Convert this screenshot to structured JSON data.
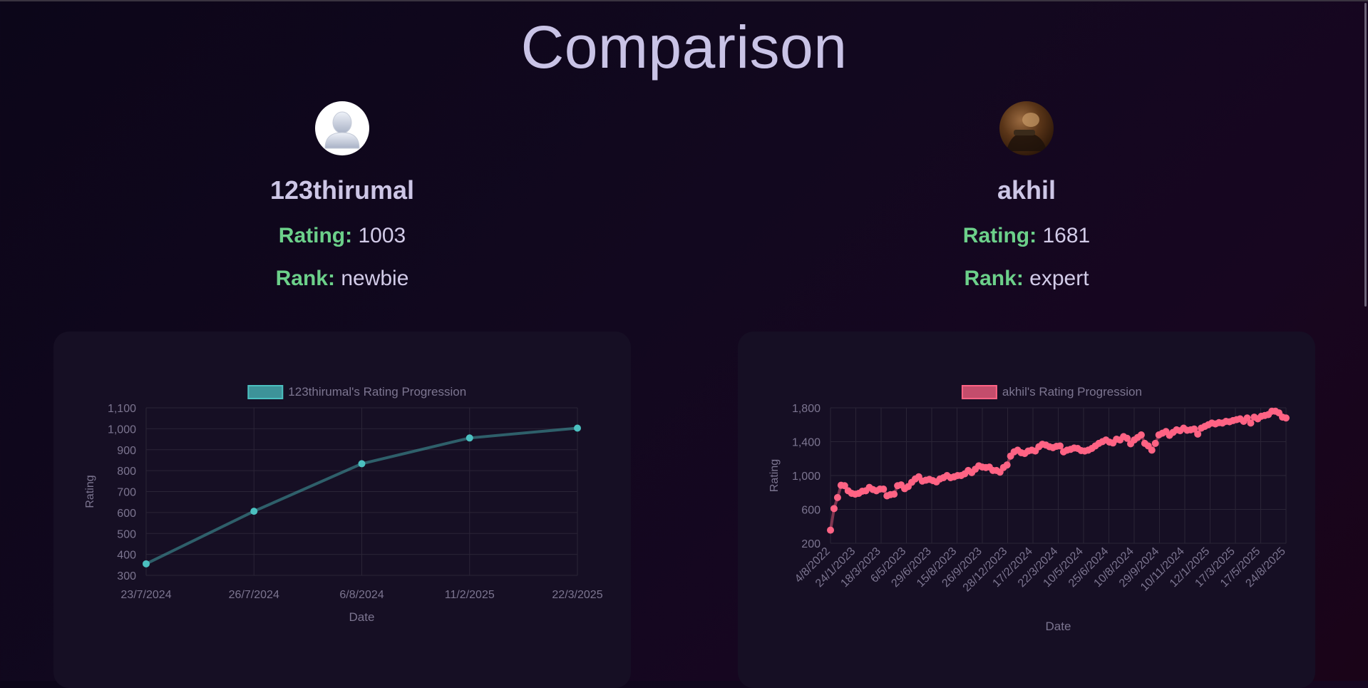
{
  "page": {
    "title": "Comparison"
  },
  "users": [
    {
      "username": "123thirumal",
      "rating_label": "Rating:",
      "rating": "1003",
      "rank_label": "Rank:",
      "rank": "newbie",
      "avatar": "default-user-icon"
    },
    {
      "username": "akhil",
      "rating_label": "Rating:",
      "rating": "1681",
      "rank_label": "Rank:",
      "rank": "expert",
      "avatar": "profile-photo"
    }
  ],
  "chart_data": [
    {
      "type": "line",
      "legend": "123thirumal's Rating Progression",
      "xlabel": "Date",
      "ylabel": "Rating",
      "color": "#4bc0c0",
      "ylim": [
        300,
        1100
      ],
      "yticks": [
        300,
        400,
        500,
        600,
        700,
        800,
        900,
        1000,
        1100
      ],
      "x": [
        "23/7/2024",
        "26/7/2024",
        "6/8/2024",
        "11/2/2025",
        "22/3/2025"
      ],
      "series": [
        {
          "name": "123thirumal's Rating Progression",
          "values": [
            355,
            606,
            833,
            956,
            1003
          ]
        }
      ]
    },
    {
      "type": "line",
      "legend": "akhil's Rating Progression",
      "xlabel": "Date",
      "ylabel": "Rating",
      "color": "#ff6384",
      "ylim": [
        200,
        1800
      ],
      "yticks": [
        200,
        600,
        1000,
        1400,
        1800
      ],
      "xtick_labels": [
        "4/8/2022",
        "24/1/2023",
        "18/3/2023",
        "6/5/2023",
        "29/6/2023",
        "15/8/2023",
        "26/9/2023",
        "28/12/2023",
        "17/2/2024",
        "22/3/2024",
        "10/5/2024",
        "25/6/2024",
        "10/8/2024",
        "29/9/2024",
        "10/11/2024",
        "12/1/2025",
        "17/3/2025",
        "17/5/2025",
        "24/8/2025"
      ],
      "series": [
        {
          "name": "akhil's Rating Progression",
          "values": [
            355,
            610,
            740,
            885,
            880,
            820,
            790,
            780,
            790,
            815,
            820,
            860,
            835,
            820,
            840,
            840,
            760,
            775,
            780,
            880,
            890,
            845,
            870,
            920,
            960,
            985,
            935,
            945,
            955,
            940,
            925,
            960,
            975,
            1000,
            975,
            985,
            1000,
            1000,
            1020,
            1060,
            1035,
            1075,
            1115,
            1100,
            1095,
            1100,
            1060,
            1060,
            1040,
            1095,
            1125,
            1230,
            1280,
            1300,
            1270,
            1260,
            1290,
            1300,
            1290,
            1340,
            1370,
            1360,
            1340,
            1330,
            1345,
            1350,
            1280,
            1300,
            1310,
            1325,
            1320,
            1295,
            1290,
            1300,
            1320,
            1350,
            1380,
            1400,
            1420,
            1395,
            1385,
            1430,
            1420,
            1460,
            1440,
            1375,
            1420,
            1450,
            1480,
            1380,
            1350,
            1300,
            1380,
            1480,
            1500,
            1520,
            1475,
            1510,
            1540,
            1530,
            1560,
            1535,
            1540,
            1550,
            1490,
            1560,
            1580,
            1600,
            1620,
            1610,
            1625,
            1620,
            1640,
            1635,
            1650,
            1660,
            1670,
            1640,
            1680,
            1620,
            1690,
            1670,
            1700,
            1710,
            1720,
            1760,
            1760,
            1740,
            1690,
            1680
          ]
        }
      ]
    }
  ]
}
